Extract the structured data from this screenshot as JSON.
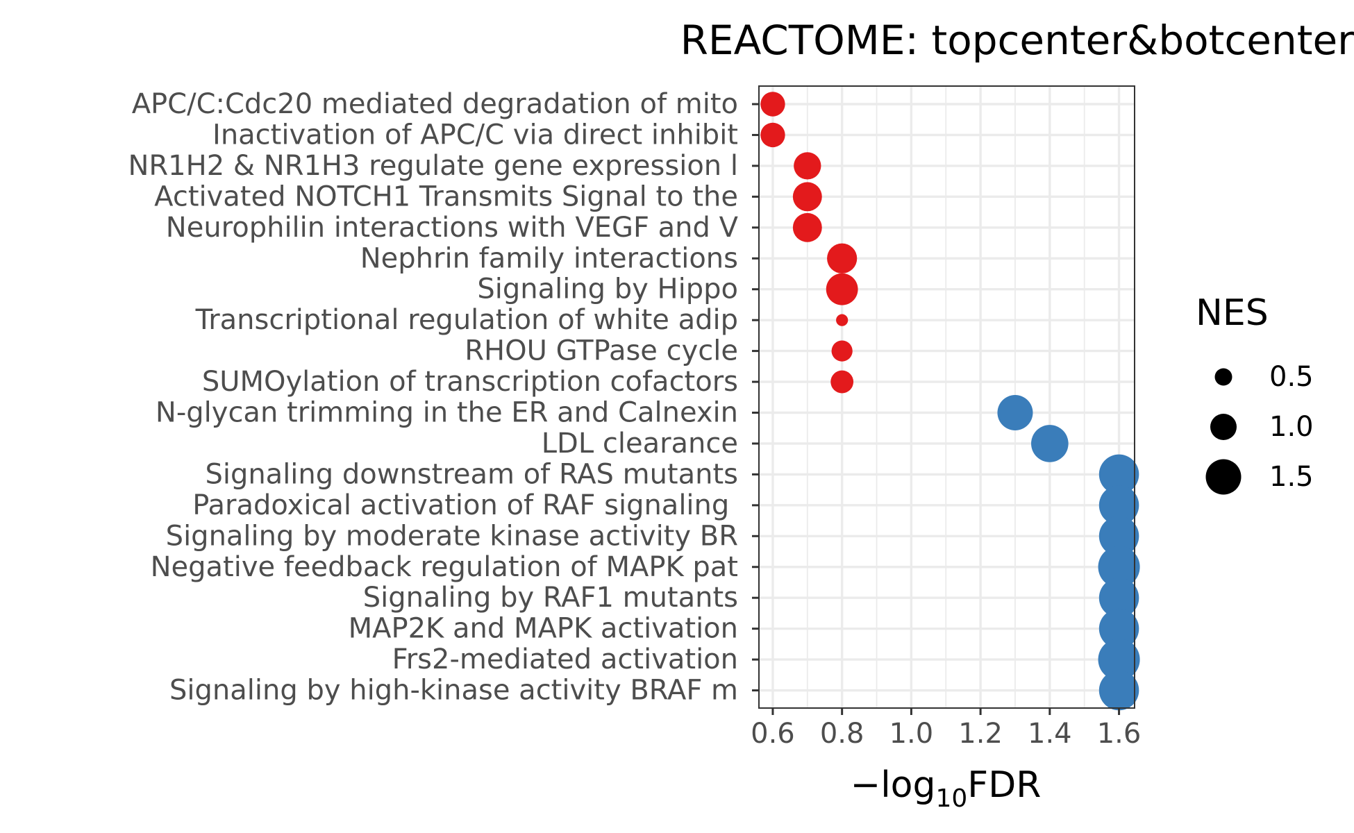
{
  "chart_data": {
    "type": "scatter",
    "title": "REACTOME: topcenter&botcenter",
    "xlabel_prefix": "−log",
    "xlabel_subscript": "10",
    "xlabel_suffix": "FDR",
    "xlim": [
      0.56,
      1.645
    ],
    "xticks": [
      0.6,
      0.8,
      1.0,
      1.2,
      1.4,
      1.6
    ],
    "xtick_labels": [
      "0.6",
      "0.8",
      "1.0",
      "1.2",
      "1.4",
      "1.6"
    ],
    "grid": true,
    "legend": {
      "title": "NES",
      "placement": "right",
      "entries": [
        {
          "label": "0.5",
          "value": 0.5
        },
        {
          "label": "1.0",
          "value": 1.0
        },
        {
          "label": "1.5",
          "value": 1.5
        }
      ]
    },
    "colors": {
      "red": "#e31a1c",
      "blue": "#3a7dba"
    },
    "points": [
      {
        "label": "APC/C:Cdc20 mediated degradation of mito",
        "x": 0.6,
        "nes": 0.9,
        "color": "red"
      },
      {
        "label": "Inactivation of APC/C via direct inhibit",
        "x": 0.6,
        "nes": 0.9,
        "color": "red"
      },
      {
        "label": "NR1H2 & NR1H3 regulate gene expression l",
        "x": 0.7,
        "nes": 1.05,
        "color": "red"
      },
      {
        "label": "Activated NOTCH1 Transmits Signal to the",
        "x": 0.7,
        "nes": 1.15,
        "color": "red"
      },
      {
        "label": "Neurophilin interactions with VEGF and V",
        "x": 0.7,
        "nes": 1.15,
        "color": "red"
      },
      {
        "label": "Nephrin family interactions",
        "x": 0.8,
        "nes": 1.2,
        "color": "red"
      },
      {
        "label": "Signaling by Hippo",
        "x": 0.8,
        "nes": 1.3,
        "color": "red"
      },
      {
        "label": "Transcriptional regulation of white adip",
        "x": 0.8,
        "nes": 0.2,
        "color": "red"
      },
      {
        "label": "RHOU GTPase cycle",
        "x": 0.8,
        "nes": 0.7,
        "color": "red"
      },
      {
        "label": "SUMOylation of transcription cofactors",
        "x": 0.8,
        "nes": 0.8,
        "color": "red"
      },
      {
        "label": "N-glycan trimming in the ER and Calnexin",
        "x": 1.3,
        "nes": 1.5,
        "color": "blue"
      },
      {
        "label": "LDL clearance",
        "x": 1.4,
        "nes": 1.6,
        "color": "blue"
      },
      {
        "label": "Signaling downstream of RAS mutants",
        "x": 1.6,
        "nes": 1.75,
        "color": "blue"
      },
      {
        "label": "Paradoxical activation of RAF signaling ",
        "x": 1.6,
        "nes": 1.75,
        "color": "blue"
      },
      {
        "label": "Signaling by moderate kinase activity BR",
        "x": 1.6,
        "nes": 1.75,
        "color": "blue"
      },
      {
        "label": "Negative feedback regulation of MAPK pat",
        "x": 1.6,
        "nes": 1.85,
        "color": "blue"
      },
      {
        "label": "Signaling by RAF1 mutants",
        "x": 1.6,
        "nes": 1.75,
        "color": "blue"
      },
      {
        "label": "MAP2K and MAPK activation",
        "x": 1.6,
        "nes": 1.75,
        "color": "blue"
      },
      {
        "label": "Frs2-mediated activation",
        "x": 1.6,
        "nes": 1.85,
        "color": "blue"
      },
      {
        "label": "Signaling by high-kinase activity BRAF m",
        "x": 1.6,
        "nes": 1.75,
        "color": "blue"
      }
    ]
  }
}
